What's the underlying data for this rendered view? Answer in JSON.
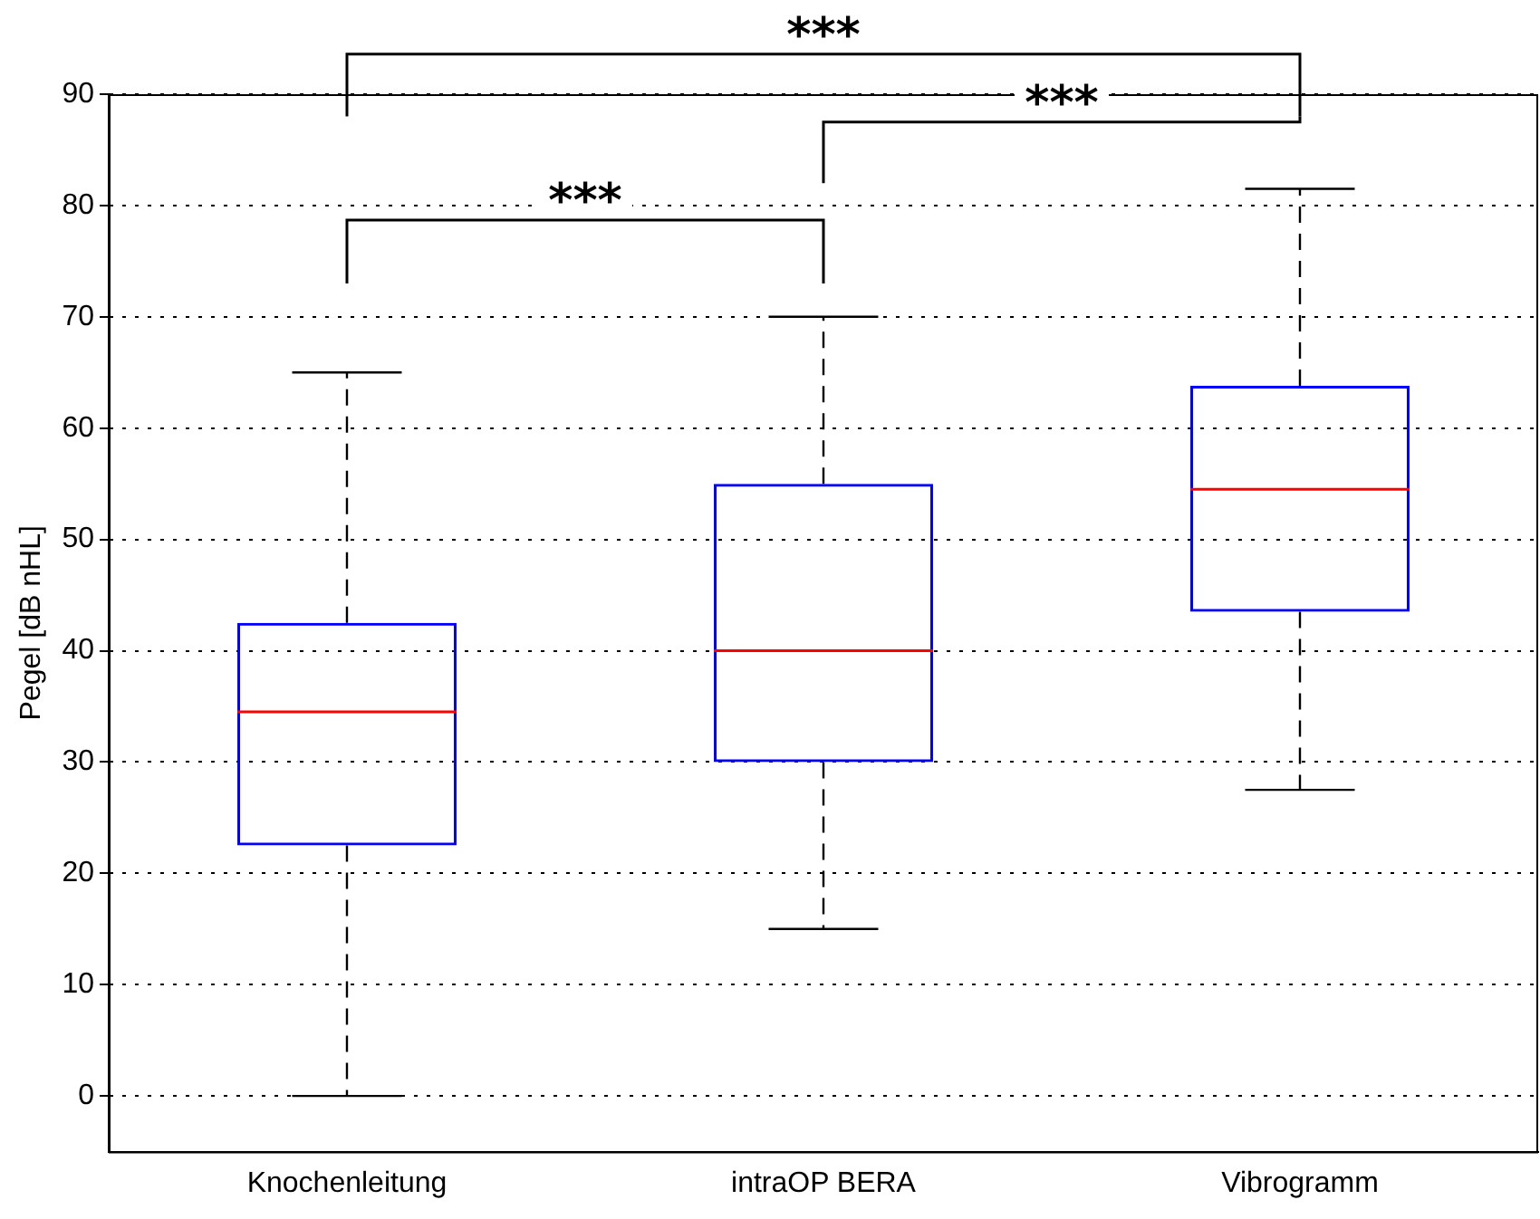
{
  "chart_data": {
    "type": "box",
    "ylabel": "Pegel [dB nHL]",
    "categories": [
      "Knochenleitung",
      "intraOP BERA",
      "Vibrogramm"
    ],
    "series": [
      {
        "color": "#0000ff",
        "boxes": [
          {
            "low": 0,
            "q1": 22.5,
            "median": 34.5,
            "q3": 42.5,
            "high": 65
          },
          {
            "low": 15,
            "q1": 30,
            "median": 40,
            "q3": 55,
            "high": 70
          },
          {
            "low": 27.5,
            "q1": 43.5,
            "median": 54.5,
            "q3": 63.8,
            "high": 81.5
          }
        ]
      }
    ],
    "ylim": [
      -5,
      90
    ],
    "yticks": [
      0,
      10,
      20,
      30,
      40,
      50,
      60,
      70,
      80,
      90
    ],
    "grid": "y",
    "legend": false,
    "annotations": [
      "***",
      "***",
      "***"
    ]
  }
}
